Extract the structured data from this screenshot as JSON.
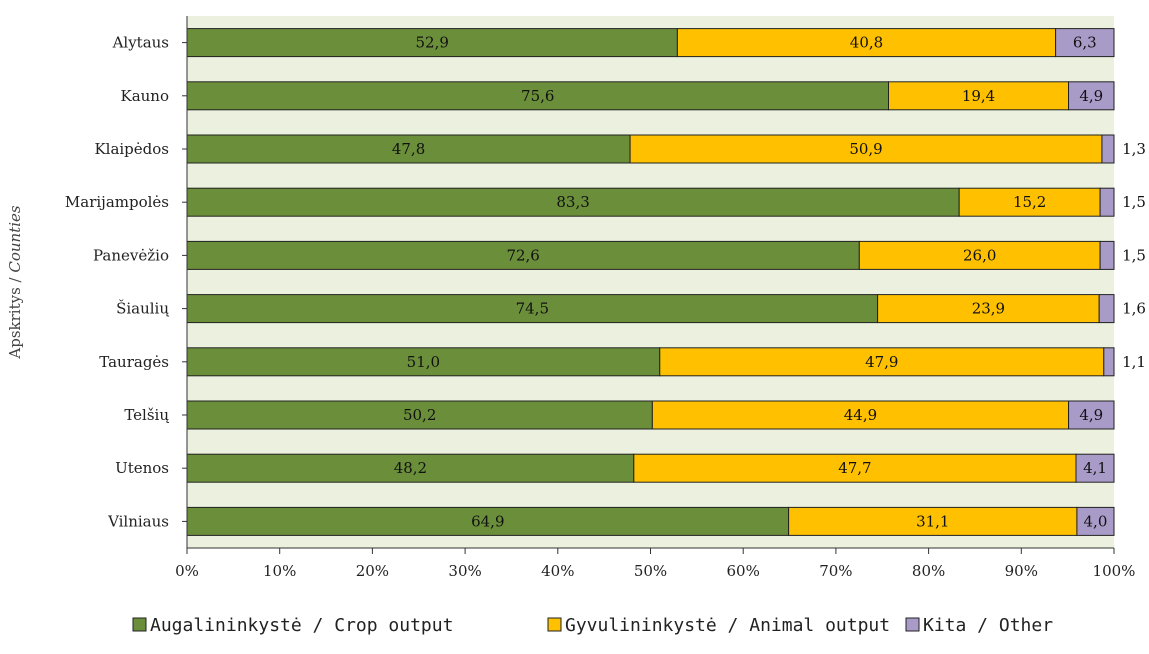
{
  "chart_data": {
    "type": "bar",
    "orientation": "horizontal",
    "stacked": true,
    "percent_scale": true,
    "ylabel_parts": [
      "Apskritys / ",
      "Counties"
    ],
    "categories": [
      "Alytaus",
      "Kauno",
      "Klaipėdos",
      "Marijampolės",
      "Panevėžio",
      "Šiaulių",
      "Tauragės",
      "Telšių",
      "Utenos",
      "Vilniaus"
    ],
    "series": [
      {
        "name": "Augalininkystė / Crop output",
        "color": "#6B8E3A",
        "values": [
          52.9,
          75.6,
          47.8,
          83.3,
          72.6,
          74.5,
          51.0,
          50.2,
          48.2,
          64.9
        ],
        "labels": [
          "52,9",
          "75,6",
          "47,8",
          "83,3",
          "72,6",
          "74,5",
          "51,0",
          "50,2",
          "48,2",
          "64,9"
        ]
      },
      {
        "name": "Gyvulininkystė / Animal output",
        "color": "#FFC000",
        "values": [
          40.8,
          19.4,
          50.9,
          15.2,
          26.0,
          23.9,
          47.9,
          44.9,
          47.7,
          31.1
        ],
        "labels": [
          "40,8",
          "19,4",
          "50,9",
          "15,2",
          "26,0",
          "23,9",
          "47,9",
          "44,9",
          "47,7",
          "31,1"
        ]
      },
      {
        "name": "Kita / Other",
        "color": "#A99BC8",
        "values": [
          6.3,
          4.9,
          1.3,
          1.5,
          1.5,
          1.6,
          1.1,
          4.9,
          4.1,
          4.0
        ],
        "labels": [
          "6,3",
          "4,9",
          "1,3",
          "1,5",
          "1,5",
          "1,6",
          "1,1",
          "4,9",
          "4,1",
          "4,0"
        ]
      }
    ],
    "xlim": [
      0,
      100
    ],
    "xticks": [
      "0%",
      "10%",
      "20%",
      "30%",
      "40%",
      "50%",
      "60%",
      "70%",
      "80%",
      "90%",
      "100%"
    ],
    "legend_position": "bottom",
    "plot_background": "#EBF1DE",
    "grid": false
  }
}
